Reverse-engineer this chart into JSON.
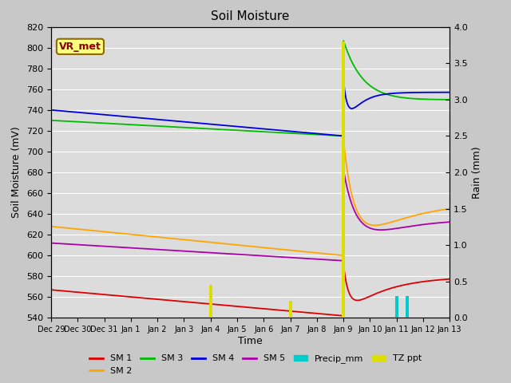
{
  "title": "Soil Moisture",
  "xlabel": "Time",
  "ylabel_left": "Soil Moisture (mV)",
  "ylabel_right": "Rain (mm)",
  "ylim_left": [
    540,
    820
  ],
  "ylim_right": [
    0.0,
    4.0
  ],
  "fig_bg_color": "#c8c8c8",
  "plot_bg_color": "#dcdcdc",
  "annotation_text": "VR_met",
  "annotation_color": "#8b0000",
  "annotation_bg": "#ffff80",
  "annotation_border": "#8b6914",
  "x_tick_labels": [
    "Dec 29",
    "Dec 30",
    "Dec 31",
    "Jan 1",
    "Jan 2",
    "Jan 3",
    "Jan 4",
    "Jan 5",
    "Jan 6",
    "Jan 7",
    "Jan 8",
    "Jan 9",
    "Jan 10",
    "Jan 11",
    "Jan 12",
    "Jan 13"
  ],
  "sm1_color": "#dd0000",
  "sm2_color": "#ffa500",
  "sm3_color": "#00bb00",
  "sm4_color": "#0000dd",
  "sm5_color": "#aa00aa",
  "precip_color": "#00cccc",
  "tzppt_color": "#dddd00",
  "yticks_left": [
    540,
    560,
    580,
    600,
    620,
    640,
    660,
    680,
    700,
    720,
    740,
    760,
    780,
    800,
    820
  ],
  "yticks_right": [
    0.0,
    0.5,
    1.0,
    1.5,
    2.0,
    2.5,
    3.0,
    3.5,
    4.0
  ]
}
